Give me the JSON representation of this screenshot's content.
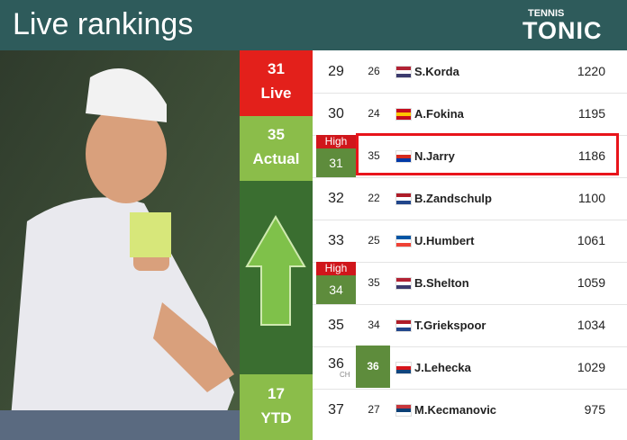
{
  "header": {
    "title": "Live rankings",
    "logo_top": "TENNIS",
    "logo_bottom": "TONIC"
  },
  "summary": {
    "live": {
      "value": "31",
      "label": "Live"
    },
    "actual": {
      "value": "35",
      "label": "Actual"
    },
    "ytd": {
      "value": "17",
      "label": "YTD"
    }
  },
  "rows": [
    {
      "rank": "29",
      "prev": "26",
      "name": "S.Korda",
      "points": "1220"
    },
    {
      "rank": "30",
      "prev": "24",
      "name": "A.Fokina",
      "points": "1195"
    },
    {
      "high": "High",
      "rank": "31",
      "prev": "35",
      "name": "N.Jarry",
      "points": "1186"
    },
    {
      "rank": "32",
      "prev": "22",
      "name": "B.Zandschulp",
      "points": "1100"
    },
    {
      "rank": "33",
      "prev": "25",
      "name": "U.Humbert",
      "points": "1061"
    },
    {
      "high": "High",
      "rank": "34",
      "prev": "35",
      "name": "B.Shelton",
      "points": "1059"
    },
    {
      "rank": "35",
      "prev": "34",
      "name": "T.Griekspoor",
      "points": "1034"
    },
    {
      "rank": "36",
      "ch": "CH",
      "prev": "36",
      "name": "J.Lehecka",
      "points": "1029"
    },
    {
      "rank": "37",
      "prev": "27",
      "name": "M.Kecmanovic",
      "points": "975"
    }
  ]
}
